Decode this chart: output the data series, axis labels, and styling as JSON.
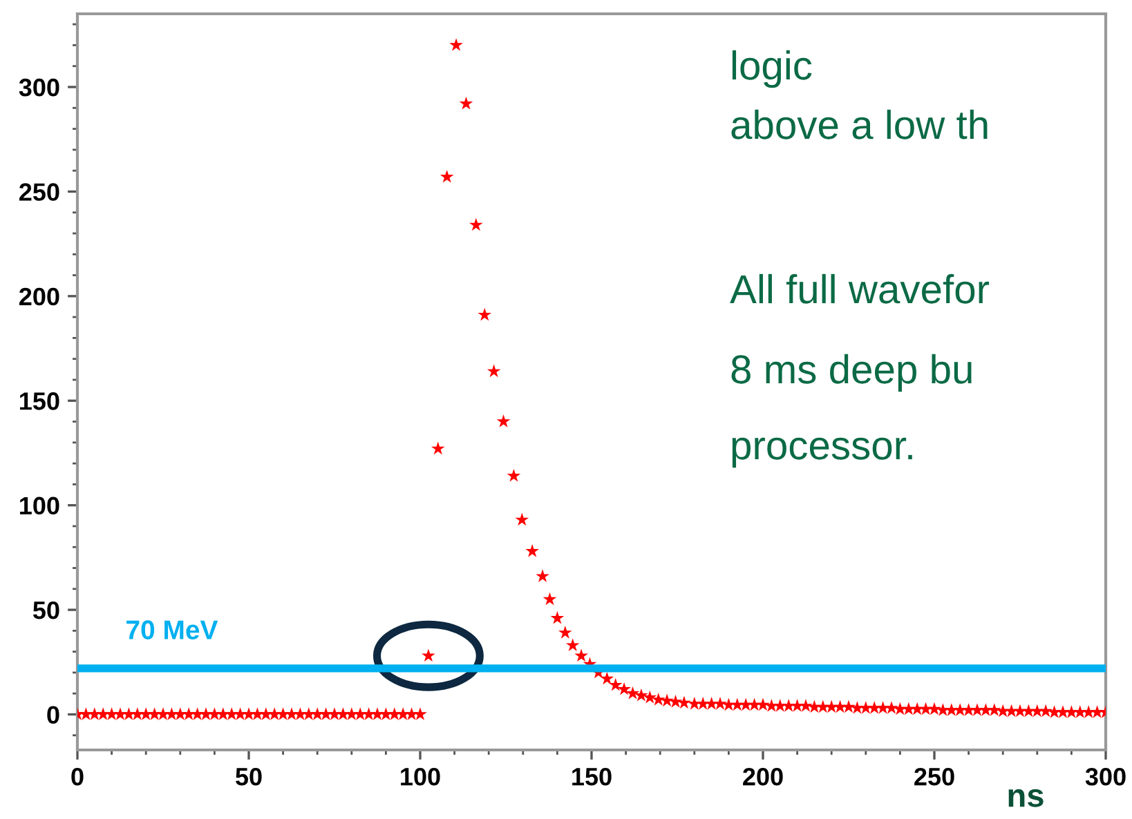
{
  "chart_data": {
    "type": "scatter",
    "xlabel": "ns",
    "xlim": [
      0,
      300
    ],
    "ylim": [
      -17,
      335
    ],
    "xticks": [
      0,
      50,
      100,
      150,
      200,
      250,
      300
    ],
    "yticks": [
      0,
      50,
      100,
      150,
      200,
      250,
      300
    ],
    "marker": "star",
    "grid": false,
    "legend": false,
    "series": [
      {
        "color": "#ff0000",
        "x": [
          0,
          2.5,
          5,
          7.5,
          10,
          12.5,
          15,
          17.5,
          20,
          22.5,
          25,
          27.5,
          30,
          32.5,
          35,
          37.5,
          40,
          42.5,
          45,
          47.5,
          50,
          52.5,
          55,
          57.5,
          60,
          62.5,
          65,
          67.5,
          70,
          72.5,
          75,
          77.5,
          80,
          82.5,
          85,
          87.5,
          90,
          92.5,
          95,
          97.5,
          100,
          102.4,
          105.2,
          107.8,
          110.5,
          113.4,
          116.3,
          118.8,
          121.5,
          124.3,
          127.3,
          129.7,
          132.7,
          135.7,
          137.8,
          140,
          142.3,
          144.5,
          147,
          149.5,
          152,
          154.5,
          157,
          159.5,
          162,
          164.5,
          167,
          169.5,
          172,
          174.5,
          177,
          180,
          182.5,
          185,
          187.5,
          190,
          192.5,
          195,
          197.5,
          200,
          202.5,
          205,
          207.5,
          210,
          212.5,
          215,
          217.5,
          220,
          222.5,
          225,
          227.5,
          230,
          232.5,
          235,
          237.5,
          240,
          242.5,
          245,
          247.5,
          250,
          252.5,
          255,
          257.5,
          260,
          262.5,
          265,
          267.5,
          270,
          272.5,
          275,
          277.5,
          280,
          282.5,
          285,
          287.5,
          290,
          292.5,
          295,
          297.5,
          300
        ],
        "values": [
          0,
          0,
          0,
          0,
          0,
          0,
          0,
          0,
          0,
          0,
          0,
          0,
          0,
          0,
          0,
          0,
          0,
          0,
          0,
          0,
          0,
          0,
          0,
          0,
          0,
          0,
          0,
          0,
          0,
          0,
          0,
          0,
          0,
          0,
          0,
          0,
          0,
          0,
          0,
          0,
          0,
          28,
          127,
          257,
          320,
          292,
          234,
          191,
          164,
          140,
          114,
          93,
          78,
          66,
          55,
          46,
          39,
          33,
          28,
          24,
          20,
          17,
          14,
          12,
          10,
          9,
          8,
          7,
          6.5,
          6,
          5.5,
          5,
          5,
          5,
          5,
          4.5,
          4.5,
          4.5,
          4.5,
          4.5,
          4,
          4,
          4,
          4,
          4,
          3.5,
          3.5,
          3.5,
          3.5,
          3.5,
          3,
          3,
          3,
          3,
          3,
          2.5,
          2.5,
          2.5,
          2.5,
          2.5,
          2,
          2,
          2,
          2,
          2,
          2,
          2,
          1.5,
          1.5,
          1.5,
          1.5,
          1.5,
          1.5,
          1,
          1,
          1,
          1,
          1,
          1,
          1
        ]
      }
    ],
    "ref_lines": [
      {
        "axis": "y",
        "value": 22,
        "label": "70 MeV",
        "color": "#00b0f0"
      }
    ],
    "annotations": [
      "logic",
      "above a low th",
      "All full wavefor",
      "8 ms deep bu",
      "processor."
    ]
  }
}
